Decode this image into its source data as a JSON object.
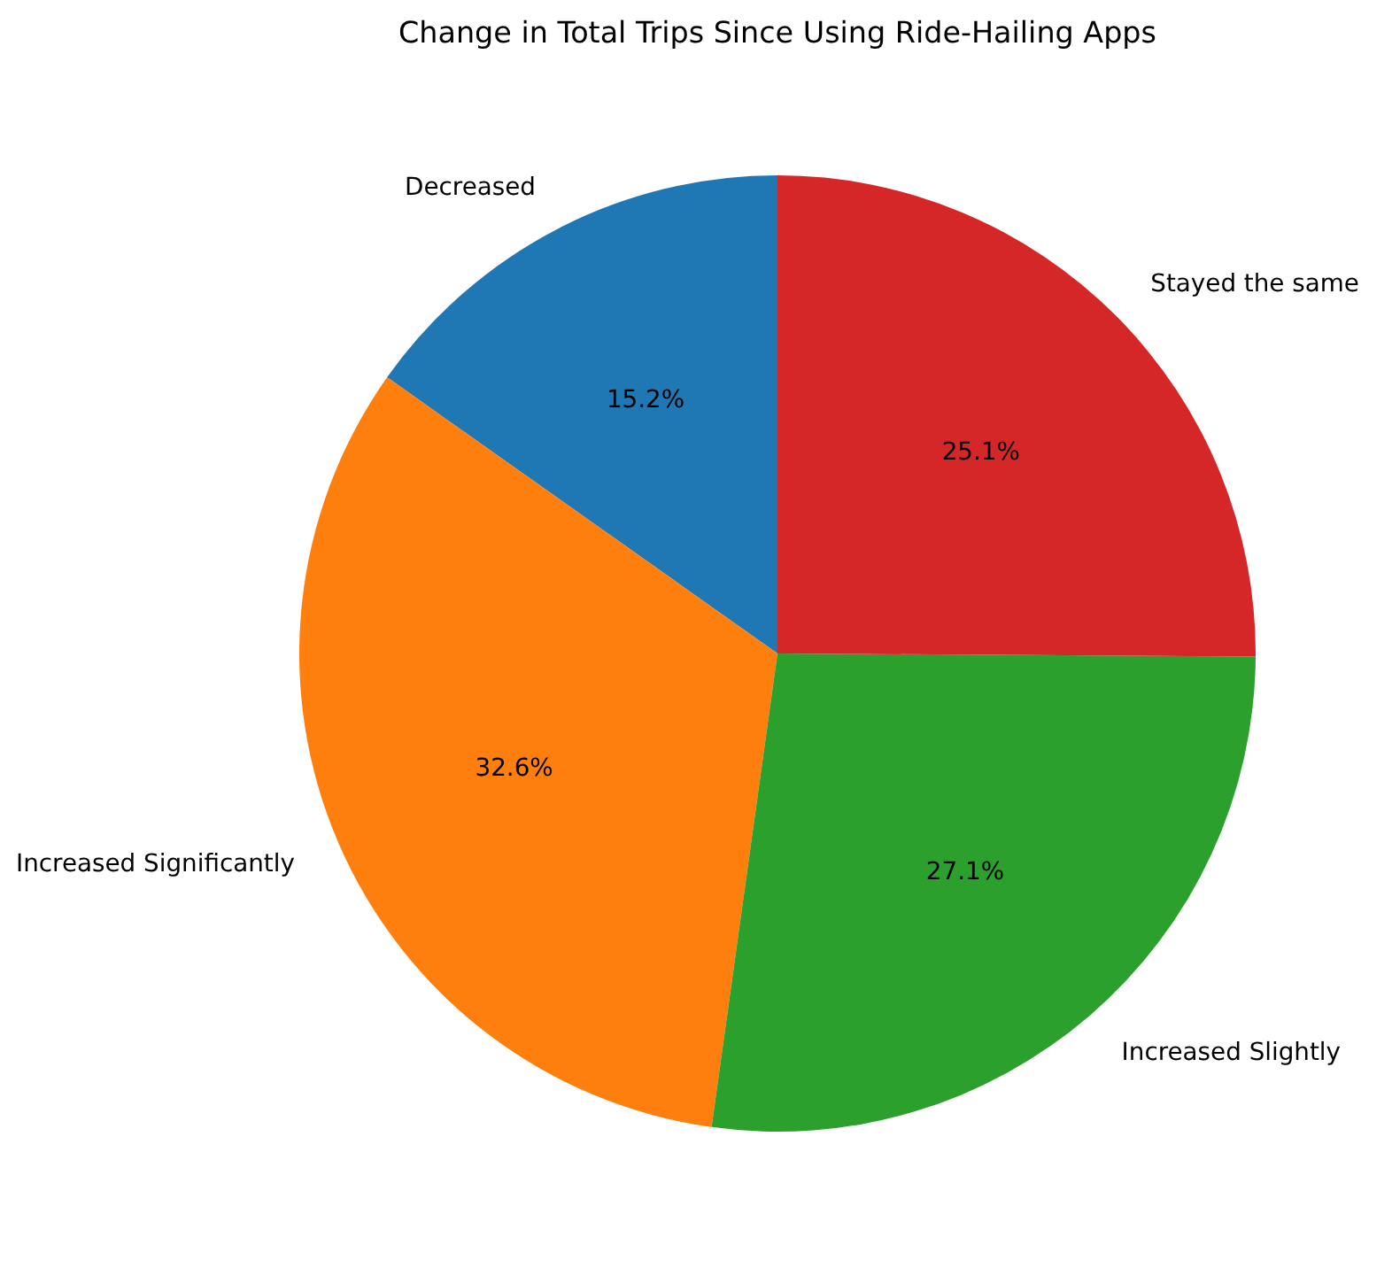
{
  "chart_data": {
    "type": "pie",
    "title": "Change in Total Trips Since Using Ride-Hailing Apps",
    "categories": [
      "Decreased",
      "Increased Significantly",
      "Increased Slightly",
      "Stayed the same"
    ],
    "values": [
      15.2,
      32.6,
      27.1,
      25.1
    ],
    "colors": [
      "#1f77b4",
      "#ff7f0e",
      "#2ca02c",
      "#d62728"
    ],
    "value_labels": [
      "15.2%",
      "32.6%",
      "27.1%",
      "25.1%"
    ]
  }
}
